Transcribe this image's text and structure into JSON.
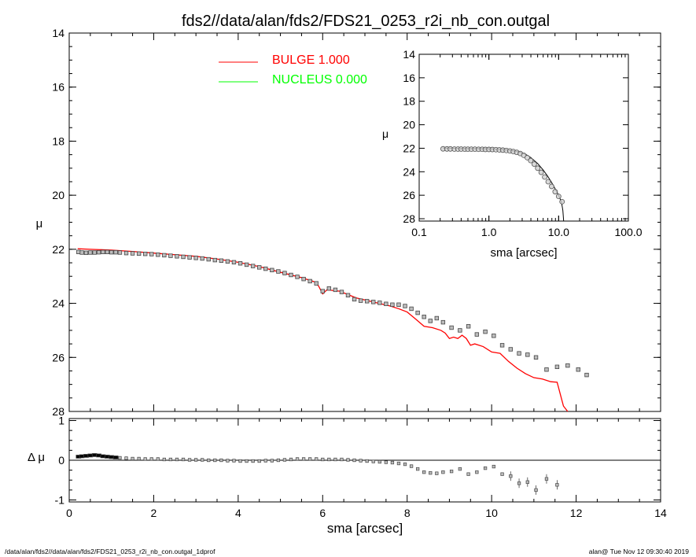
{
  "title": "fds2//data/alan/fds2/FDS21_0253_r2i_nb_con.outgal",
  "footer_left": "/data/alan/fds2//data/alan/fds2/FDS21_0253_r2i_nb_con.outgal_1dprof",
  "footer_right": "alan@  Tue Nov 12 09:30:40 2019",
  "legend": [
    {
      "label": "BULGE  1.000",
      "color": "#ff0000"
    },
    {
      "label": "NUCLEUS  0.000",
      "color": "#00ff00"
    }
  ],
  "chart_data": [
    {
      "type": "scatter",
      "panel": "main",
      "xlabel": "sma [arcsec]",
      "ylabel": "μ",
      "xlim": [
        0,
        14
      ],
      "ylim": [
        28,
        14
      ],
      "x_ticks": [
        0,
        2,
        4,
        6,
        8,
        10,
        12,
        14
      ],
      "y_ticks": [
        14,
        16,
        18,
        20,
        22,
        24,
        26,
        28
      ],
      "series": [
        {
          "name": "data",
          "marker": "square",
          "x": [
            0.22,
            0.3,
            0.4,
            0.5,
            0.6,
            0.7,
            0.8,
            0.9,
            1.0,
            1.1,
            1.2,
            1.35,
            1.5,
            1.65,
            1.8,
            1.95,
            2.1,
            2.25,
            2.4,
            2.55,
            2.7,
            2.85,
            3.0,
            3.15,
            3.3,
            3.45,
            3.6,
            3.75,
            3.9,
            4.05,
            4.2,
            4.35,
            4.5,
            4.65,
            4.8,
            4.95,
            5.1,
            5.25,
            5.4,
            5.55,
            5.7,
            5.85,
            6.0,
            6.15,
            6.3,
            6.45,
            6.6,
            6.75,
            6.9,
            7.05,
            7.2,
            7.35,
            7.5,
            7.65,
            7.8,
            7.95,
            8.1,
            8.25,
            8.4,
            8.55,
            8.7,
            8.85,
            9.05,
            9.25,
            9.45,
            9.65,
            9.85,
            10.05,
            10.25,
            10.45,
            10.65,
            10.85,
            11.05,
            11.3,
            11.55,
            11.8,
            12.05,
            12.25
          ],
          "y": [
            22.1,
            22.12,
            22.13,
            22.12,
            22.12,
            22.11,
            22.1,
            22.1,
            22.11,
            22.11,
            22.12,
            22.14,
            22.15,
            22.16,
            22.17,
            22.18,
            22.2,
            22.22,
            22.24,
            22.26,
            22.28,
            22.3,
            22.32,
            22.34,
            22.37,
            22.4,
            22.42,
            22.45,
            22.48,
            22.52,
            22.57,
            22.62,
            22.67,
            22.72,
            22.77,
            22.82,
            22.88,
            22.95,
            23.02,
            23.1,
            23.18,
            23.26,
            23.55,
            23.45,
            23.5,
            23.58,
            23.7,
            23.85,
            23.9,
            23.92,
            23.95,
            23.98,
            24.02,
            24.05,
            24.05,
            24.1,
            24.2,
            24.35,
            24.5,
            24.65,
            24.55,
            24.7,
            24.9,
            25.0,
            24.85,
            25.15,
            25.05,
            25.2,
            25.55,
            25.7,
            25.85,
            25.9,
            26.0,
            26.45,
            26.35,
            26.3,
            26.45,
            26.65
          ]
        },
        {
          "name": "BULGE  1.000",
          "type": "line",
          "x": [
            0.2,
            0.5,
            1.0,
            1.5,
            2.0,
            2.5,
            3.0,
            3.5,
            4.0,
            4.5,
            5.0,
            5.5,
            5.8,
            5.9,
            6.0,
            6.1,
            6.4,
            6.8,
            7.2,
            7.6,
            7.8,
            8.0,
            8.2,
            8.4,
            8.6,
            8.8,
            8.9,
            9.0,
            9.1,
            9.2,
            9.3,
            9.4,
            9.5,
            9.6,
            9.8,
            10.0,
            10.2,
            10.4,
            10.6,
            10.8,
            11.0,
            11.2,
            11.4,
            11.55,
            11.7,
            11.8
          ],
          "y": [
            21.98,
            22.0,
            22.03,
            22.08,
            22.14,
            22.2,
            22.26,
            22.36,
            22.48,
            22.64,
            22.85,
            23.05,
            23.2,
            23.35,
            23.65,
            23.5,
            23.55,
            23.8,
            23.95,
            24.1,
            24.2,
            24.32,
            24.58,
            24.85,
            24.9,
            25.0,
            25.1,
            25.3,
            25.25,
            25.3,
            25.18,
            25.3,
            25.55,
            25.5,
            25.6,
            25.8,
            25.85,
            26.15,
            26.4,
            26.6,
            26.75,
            26.8,
            26.9,
            26.92,
            27.8,
            28.0
          ]
        }
      ]
    },
    {
      "type": "scatter",
      "panel": "residual",
      "xlabel": "sma [arcsec]",
      "ylabel": "Δ μ",
      "xlim": [
        0,
        14
      ],
      "ylim": [
        -1.05,
        1.05
      ],
      "y_ticks": [
        -1,
        0,
        1
      ],
      "series": [
        {
          "name": "residual",
          "x": [
            0.22,
            0.3,
            0.4,
            0.5,
            0.6,
            0.7,
            0.8,
            0.9,
            1.0,
            1.1,
            1.2,
            1.35,
            1.5,
            1.65,
            1.8,
            1.95,
            2.1,
            2.25,
            2.4,
            2.55,
            2.7,
            2.85,
            3.0,
            3.15,
            3.3,
            3.45,
            3.6,
            3.75,
            3.9,
            4.05,
            4.2,
            4.35,
            4.5,
            4.65,
            4.8,
            4.95,
            5.1,
            5.25,
            5.4,
            5.55,
            5.7,
            5.85,
            6.0,
            6.15,
            6.3,
            6.45,
            6.6,
            6.75,
            6.9,
            7.05,
            7.2,
            7.35,
            7.5,
            7.65,
            7.8,
            7.95,
            8.1,
            8.25,
            8.4,
            8.55,
            8.7,
            8.85,
            9.05,
            9.25,
            9.45,
            9.65,
            9.85,
            10.05,
            10.25,
            10.45,
            10.65,
            10.85,
            11.05,
            11.3,
            11.55
          ],
          "y": [
            0.09,
            0.1,
            0.11,
            0.12,
            0.13,
            0.12,
            0.1,
            0.09,
            0.08,
            0.07,
            0.06,
            0.05,
            0.04,
            0.04,
            0.03,
            0.03,
            0.03,
            0.02,
            0.02,
            0.02,
            0.02,
            0.01,
            0.01,
            0.01,
            0.0,
            0.0,
            0.0,
            -0.01,
            -0.01,
            -0.02,
            -0.02,
            -0.02,
            -0.02,
            -0.01,
            -0.01,
            0.0,
            0.01,
            0.02,
            0.03,
            0.03,
            0.03,
            0.03,
            0.02,
            0.02,
            0.02,
            0.02,
            0.01,
            0.0,
            -0.01,
            -0.02,
            -0.03,
            -0.04,
            -0.05,
            -0.06,
            -0.08,
            -0.1,
            -0.15,
            -0.22,
            -0.3,
            -0.32,
            -0.33,
            -0.3,
            -0.28,
            -0.22,
            -0.35,
            -0.3,
            -0.2,
            -0.16,
            -0.35,
            -0.4,
            -0.58,
            -0.55,
            -0.75,
            -0.47,
            -0.62
          ]
        }
      ]
    },
    {
      "type": "scatter",
      "panel": "inset",
      "xlabel": "sma [arcsec]",
      "ylabel": "μ",
      "x_scale": "log",
      "xlim": [
        0.1,
        100.0
      ],
      "ylim": [
        28.2,
        14
      ],
      "x_ticks": [
        "0.1",
        "1.0",
        "10.0",
        "100.0"
      ],
      "y_ticks": [
        14,
        16,
        18,
        20,
        22,
        24,
        26,
        28
      ],
      "series": [
        {
          "name": "data",
          "x": [
            0.22,
            0.25,
            0.28,
            0.32,
            0.36,
            0.4,
            0.45,
            0.5,
            0.56,
            0.63,
            0.71,
            0.8,
            0.89,
            1.0,
            1.12,
            1.26,
            1.41,
            1.58,
            1.78,
            2.0,
            2.24,
            2.51,
            2.82,
            3.16,
            3.55,
            3.98,
            4.47,
            5.01,
            5.62,
            6.31,
            7.08,
            7.94,
            8.91,
            10.0,
            11.2
          ],
          "y": [
            22.05,
            22.06,
            22.06,
            22.07,
            22.07,
            22.07,
            22.08,
            22.08,
            22.08,
            22.08,
            22.09,
            22.09,
            22.1,
            22.1,
            22.11,
            22.12,
            22.14,
            22.16,
            22.19,
            22.23,
            22.28,
            22.35,
            22.45,
            22.6,
            22.8,
            23.05,
            23.35,
            23.7,
            24.05,
            24.45,
            24.85,
            25.25,
            25.7,
            26.1,
            26.55
          ]
        },
        {
          "name": "model",
          "type": "line",
          "x": [
            0.22,
            0.4,
            0.7,
            1.0,
            1.5,
            2.0,
            2.5,
            3.0,
            3.5,
            4.0,
            5.0,
            6.0,
            7.0,
            8.0,
            9.0,
            10.0,
            11.0,
            11.5,
            11.8
          ],
          "y": [
            22.0,
            22.01,
            22.03,
            22.05,
            22.1,
            22.17,
            22.26,
            22.4,
            22.58,
            22.8,
            23.3,
            23.85,
            24.4,
            24.95,
            25.5,
            26.0,
            26.6,
            27.3,
            28.2
          ]
        }
      ]
    }
  ]
}
